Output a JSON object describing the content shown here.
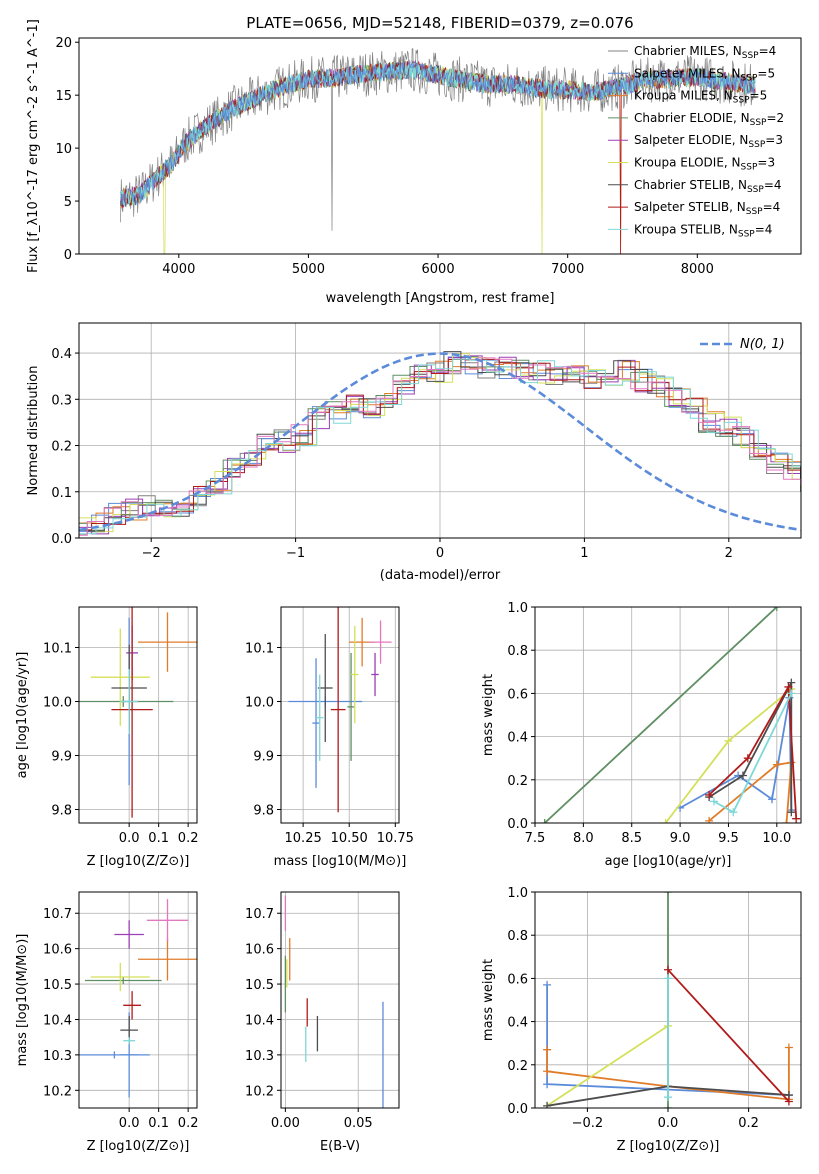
{
  "title": "PLATE=0656, MJD=52148, FIBERID=0379, z=0.076",
  "colors": {
    "chab_miles": "#808080",
    "salp_miles": "#5b8bd9",
    "krou_miles": "#e07b28",
    "chab_elodie": "#5f8f63",
    "salp_elodie": "#9b3fb5",
    "krou_elodie": "#d4e05a",
    "chab_stelib": "#4d4d4d",
    "salp_stelib": "#b01a1a",
    "krou_stelib": "#7fd8d8",
    "pink": "#e377c2",
    "normal": "#5b8bd9"
  },
  "chart_data": [
    {
      "type": "line",
      "xlabel": "wavelength [Angstrom, rest frame]",
      "ylabel": "Flux [f_λ10^-17 erg cm^-2 s^-1 A^-1]",
      "xlim": [
        3230,
        8800
      ],
      "ylim": [
        0,
        20.4
      ],
      "xticks": [
        "4000",
        "5000",
        "6000",
        "7000",
        "8000"
      ],
      "yticks": [
        "0",
        "5",
        "10",
        "15",
        "20"
      ],
      "legend": [
        {
          "name": "Chabrier MILES, N",
          "sub": "SSP",
          "tail": "=4",
          "color": "chab_miles"
        },
        {
          "name": "Salpeter MILES, N",
          "sub": "SSP",
          "tail": "=5",
          "color": "salp_miles"
        },
        {
          "name": "Kroupa MILES, N",
          "sub": "SSP",
          "tail": "=5",
          "color": "krou_miles"
        },
        {
          "name": "Chabrier ELODIE, N",
          "sub": "SSP",
          "tail": "=2",
          "color": "chab_elodie"
        },
        {
          "name": "Salpeter ELODIE, N",
          "sub": "SSP",
          "tail": "=3",
          "color": "salp_elodie"
        },
        {
          "name": "Kroupa ELODIE, N",
          "sub": "SSP",
          "tail": "=3",
          "color": "krou_elodie"
        },
        {
          "name": "Chabrier STELIB, N",
          "sub": "SSP",
          "tail": "=4",
          "color": "chab_stelib"
        },
        {
          "name": "Salpeter STELIB, N",
          "sub": "SSP",
          "tail": "=4",
          "color": "salp_stelib"
        },
        {
          "name": "Kroupa STELIB, N",
          "sub": "SSP",
          "tail": "=4",
          "color": "krou_stelib"
        }
      ],
      "continuum": [
        [
          3550,
          5.2
        ],
        [
          3700,
          5.6
        ],
        [
          3850,
          7.5
        ],
        [
          3950,
          8.6
        ],
        [
          4050,
          10.5
        ],
        [
          4200,
          12.0
        ],
        [
          4400,
          13.6
        ],
        [
          4600,
          14.8
        ],
        [
          4800,
          15.8
        ],
        [
          5000,
          16.5
        ],
        [
          5200,
          16.6
        ],
        [
          5400,
          17.0
        ],
        [
          5600,
          17.2
        ],
        [
          5800,
          17.4
        ],
        [
          6000,
          16.9
        ],
        [
          6200,
          16.4
        ],
        [
          6400,
          16.0
        ],
        [
          6600,
          16.0
        ],
        [
          6800,
          15.6
        ],
        [
          7000,
          15.5
        ],
        [
          7200,
          15.3
        ],
        [
          7400,
          15.8
        ],
        [
          7600,
          16.4
        ],
        [
          7800,
          16.6
        ],
        [
          8000,
          16.7
        ],
        [
          8200,
          16.3
        ],
        [
          8400,
          16.0
        ]
      ]
    },
    {
      "type": "bar",
      "xlabel": "(data-model)/error",
      "ylabel": "Normed distribution",
      "xlim": [
        -2.5,
        2.5
      ],
      "ylim": [
        0,
        0.465
      ],
      "xticks": [
        "−2",
        "−1",
        "0",
        "1",
        "2"
      ],
      "yticks": [
        "0.0",
        "0.1",
        "0.2",
        "0.3",
        "0.4"
      ],
      "legend": "N(0, 1)",
      "bin_width": 0.1176,
      "base_hist": [
        0.02,
        0.03,
        0.05,
        0.06,
        0.07,
        0.07,
        0.07,
        0.09,
        0.12,
        0.15,
        0.17,
        0.2,
        0.21,
        0.22,
        0.26,
        0.27,
        0.29,
        0.28,
        0.3,
        0.33,
        0.35,
        0.36,
        0.38,
        0.38,
        0.37,
        0.37,
        0.36,
        0.36,
        0.35,
        0.35,
        0.34,
        0.35,
        0.36,
        0.34,
        0.33,
        0.3,
        0.28,
        0.25,
        0.24,
        0.22,
        0.19,
        0.16,
        0.15,
        0.12,
        0.1,
        0.09,
        0.08,
        0.06,
        0.05,
        0.04,
        0.04,
        0.03
      ]
    },
    {
      "type": "scatter",
      "xlabel": "Z [log10(Z/Z⊙)]",
      "ylabel": "age [log10(age/yr)]",
      "xlim": [
        -0.17,
        0.23
      ],
      "ylim": [
        9.775,
        10.175
      ],
      "xticks": [
        "0.0",
        "0.1",
        "0.2"
      ],
      "yticks": [
        "9.8",
        "9.9",
        "10.0",
        "10.1"
      ],
      "points": [
        {
          "x": 0.0,
          "xerr": 0.03,
          "y": 10.0,
          "yerr": 0.155,
          "c": "salp_miles"
        },
        {
          "x": 0.13,
          "xerr": 0.1,
          "y": 10.11,
          "yerr": 0.055,
          "c": "krou_miles"
        },
        {
          "x": -0.02,
          "xerr": 0.17,
          "y": 10.0,
          "yerr": 0.01,
          "c": "chab_elodie"
        },
        {
          "x": 0.01,
          "xerr": 0.02,
          "y": 10.09,
          "yerr": 0.05,
          "c": "salp_elodie"
        },
        {
          "x": -0.03,
          "xerr": 0.1,
          "y": 10.045,
          "yerr": 0.09,
          "c": "krou_elodie"
        },
        {
          "x": 0.0,
          "xerr": 0.06,
          "y": 10.025,
          "yerr": 0.08,
          "c": "chab_stelib"
        },
        {
          "x": 0.01,
          "xerr": 0.07,
          "y": 9.985,
          "yerr": 0.2,
          "c": "salp_stelib"
        },
        {
          "x": 0.0,
          "xerr": 0.03,
          "y": 10.0,
          "yerr": 0.06,
          "c": "krou_stelib"
        }
      ]
    },
    {
      "type": "scatter",
      "xlabel": "mass [log10(M/M⊙)]",
      "ylabel": "",
      "xlim": [
        10.13,
        10.77
      ],
      "ylim": [
        9.775,
        10.175
      ],
      "xticks": [
        "10.25",
        "10.50",
        "10.75"
      ],
      "yticks": [
        "9.8",
        "9.9",
        "10.0",
        "10.1"
      ],
      "points": [
        {
          "x": 10.32,
          "xerr": 0.02,
          "y": 9.96,
          "yerr": 0.12,
          "c": "salp_miles"
        },
        {
          "x": 10.57,
          "xerr": 0.07,
          "y": 10.11,
          "yerr": 0.045,
          "c": "krou_miles"
        },
        {
          "x": 10.37,
          "xerr": 0.2,
          "y": 10.0,
          "yerr": 0.01,
          "c": "salp_miles"
        },
        {
          "x": 10.51,
          "xerr": 0.02,
          "y": 9.99,
          "yerr": 0.1,
          "c": "chab_elodie"
        },
        {
          "x": 10.67,
          "xerr": 0.06,
          "y": 10.11,
          "yerr": 0.04,
          "c": "pink"
        },
        {
          "x": 10.64,
          "xerr": 0.02,
          "y": 10.05,
          "yerr": 0.04,
          "c": "salp_elodie"
        },
        {
          "x": 10.53,
          "xerr": 0.02,
          "y": 10.05,
          "yerr": 0.09,
          "c": "krou_elodie"
        },
        {
          "x": 10.37,
          "xerr": 0.04,
          "y": 10.025,
          "yerr": 0.1,
          "c": "chab_stelib"
        },
        {
          "x": 10.44,
          "xerr": 0.04,
          "y": 9.985,
          "yerr": 0.19,
          "c": "salp_stelib"
        },
        {
          "x": 10.34,
          "xerr": 0.02,
          "y": 9.97,
          "yerr": 0.08,
          "c": "krou_stelib"
        }
      ]
    },
    {
      "type": "line",
      "xlabel": "age [log10(age/yr)]",
      "ylabel": "mass weight",
      "xlim": [
        7.5,
        10.25
      ],
      "ylim": [
        0,
        1.0
      ],
      "xticks": [
        "7.5",
        "8.0",
        "8.5",
        "9.0",
        "9.5",
        "10.0"
      ],
      "yticks": [
        "0.0",
        "0.2",
        "0.4",
        "0.6",
        "0.8",
        "1.0"
      ],
      "series": [
        {
          "c": "chab_elodie",
          "pts": [
            [
              7.6,
              0.0
            ],
            [
              10.0,
              1.0
            ]
          ]
        },
        {
          "c": "salp_miles",
          "pts": [
            [
              9.0,
              0.07
            ],
            [
              9.6,
              0.22
            ],
            [
              9.95,
              0.11
            ],
            [
              10.13,
              0.58
            ],
            [
              10.15,
              0.06
            ]
          ]
        },
        {
          "c": "krou_miles",
          "pts": [
            [
              9.3,
              0.01
            ],
            [
              10.0,
              0.27
            ],
            [
              10.15,
              0.28
            ],
            [
              10.1,
              0.0
            ]
          ]
        },
        {
          "c": "krou_elodie",
          "pts": [
            [
              8.85,
              0.0
            ],
            [
              9.5,
              0.38
            ],
            [
              10.15,
              0.62
            ]
          ]
        },
        {
          "c": "chab_stelib",
          "pts": [
            [
              9.3,
              0.12
            ],
            [
              9.65,
              0.22
            ],
            [
              10.15,
              0.65
            ],
            [
              10.15,
              0.05
            ]
          ]
        },
        {
          "c": "salp_stelib",
          "pts": [
            [
              9.3,
              0.13
            ],
            [
              9.7,
              0.3
            ],
            [
              10.12,
              0.63
            ],
            [
              10.2,
              0.02
            ]
          ]
        },
        {
          "c": "krou_stelib",
          "pts": [
            [
              9.35,
              0.1
            ],
            [
              9.55,
              0.05
            ],
            [
              10.15,
              0.6
            ]
          ]
        }
      ]
    },
    {
      "type": "scatter",
      "xlabel": "Z [log10(Z/Z⊙)]",
      "ylabel": "mass [log10(M/M⊙)]",
      "xlim": [
        -0.17,
        0.23
      ],
      "ylim": [
        10.15,
        10.76
      ],
      "xticks": [
        "0.0",
        "0.1",
        "0.2"
      ],
      "yticks": [
        "10.2",
        "10.3",
        "10.4",
        "10.5",
        "10.6",
        "10.7"
      ],
      "points": [
        {
          "x": 0.0,
          "xerr": 0.03,
          "y": 10.3,
          "yerr": 0.12,
          "c": "salp_miles"
        },
        {
          "x": 0.13,
          "xerr": 0.1,
          "y": 10.57,
          "yerr": 0.06,
          "c": "krou_miles"
        },
        {
          "x": -0.02,
          "xerr": 0.13,
          "y": 10.51,
          "yerr": 0.01,
          "c": "chab_elodie"
        },
        {
          "x": 0.0,
          "xerr": 0.05,
          "y": 10.64,
          "yerr": 0.04,
          "c": "salp_elodie"
        },
        {
          "x": -0.03,
          "xerr": 0.1,
          "y": 10.52,
          "yerr": 0.04,
          "c": "krou_elodie"
        },
        {
          "x": 0.13,
          "xerr": 0.07,
          "y": 10.68,
          "yerr": 0.06,
          "c": "pink"
        },
        {
          "x": -0.05,
          "xerr": 0.12,
          "y": 10.3,
          "yerr": 0.01,
          "c": "salp_miles"
        },
        {
          "x": 0.0,
          "xerr": 0.03,
          "y": 10.37,
          "yerr": 0.04,
          "c": "chab_stelib"
        },
        {
          "x": 0.01,
          "xerr": 0.03,
          "y": 10.44,
          "yerr": 0.04,
          "c": "salp_stelib"
        },
        {
          "x": 0.0,
          "xerr": 0.02,
          "y": 10.34,
          "yerr": 0.01,
          "c": "krou_stelib"
        }
      ]
    },
    {
      "type": "scatter",
      "xlabel": "E(B-V)",
      "ylabel": "",
      "xlim": [
        -0.003,
        0.078
      ],
      "ylim": [
        10.15,
        10.76
      ],
      "xticks": [
        "0.00",
        "0.05"
      ],
      "yticks": [
        "10.2",
        "10.3",
        "10.4",
        "10.5",
        "10.6",
        "10.7"
      ],
      "points": [
        {
          "x": 0.0,
          "xerr": 0.0,
          "y": 10.7,
          "yerr": 0.05,
          "c": "pink"
        },
        {
          "x": 0.003,
          "xerr": 0.0,
          "y": 10.57,
          "yerr": 0.06,
          "c": "krou_miles"
        },
        {
          "x": 0.001,
          "xerr": 0.0,
          "y": 10.53,
          "yerr": 0.04,
          "c": "krou_elodie"
        },
        {
          "x": 0.0,
          "xerr": 0.0,
          "y": 10.5,
          "yerr": 0.08,
          "c": "chab_elodie"
        },
        {
          "x": 0.015,
          "xerr": 0.0,
          "y": 10.42,
          "yerr": 0.04,
          "c": "salp_stelib"
        },
        {
          "x": 0.014,
          "xerr": 0.0,
          "y": 10.33,
          "yerr": 0.05,
          "c": "krou_stelib"
        },
        {
          "x": 0.022,
          "xerr": 0.0,
          "y": 10.36,
          "yerr": 0.05,
          "c": "chab_stelib"
        },
        {
          "x": 0.067,
          "xerr": 0.0,
          "y": 10.27,
          "yerr": 0.18,
          "c": "salp_miles"
        }
      ]
    },
    {
      "type": "line",
      "xlabel": "Z [log10(Z/Z⊙)]",
      "ylabel": "mass weight",
      "xlim": [
        -0.33,
        0.33
      ],
      "ylim": [
        0,
        1.0
      ],
      "xticks": [
        "−0.2",
        "0.0",
        "0.2"
      ],
      "yticks": [
        "0.0",
        "0.2",
        "0.4",
        "0.6",
        "0.8",
        "1.0"
      ],
      "series": [
        {
          "c": "chab_elodie",
          "pts": [
            [
              0.0,
              0.0
            ],
            [
              0.0,
              1.0
            ]
          ]
        },
        {
          "c": "salp_miles",
          "pts": [
            [
              -0.3,
              0.57
            ],
            [
              -0.3,
              0.11
            ],
            [
              0.3,
              0.06
            ]
          ]
        },
        {
          "c": "krou_miles",
          "pts": [
            [
              -0.3,
              0.27
            ],
            [
              -0.3,
              0.17
            ],
            [
              0.0,
              0.1
            ],
            [
              0.3,
              0.04
            ],
            [
              0.3,
              0.28
            ]
          ]
        },
        {
          "c": "krou_elodie",
          "pts": [
            [
              -0.3,
              0.01
            ],
            [
              0.0,
              0.38
            ]
          ]
        },
        {
          "c": "chab_stelib",
          "pts": [
            [
              -0.3,
              0.01
            ],
            [
              0.0,
              0.1
            ],
            [
              0.3,
              0.06
            ]
          ]
        },
        {
          "c": "salp_stelib",
          "pts": [
            [
              0.0,
              0.64
            ],
            [
              0.3,
              0.03
            ]
          ]
        },
        {
          "c": "krou_stelib",
          "pts": [
            [
              0.0,
              0.6
            ],
            [
              0.0,
              0.05
            ]
          ]
        }
      ]
    }
  ]
}
